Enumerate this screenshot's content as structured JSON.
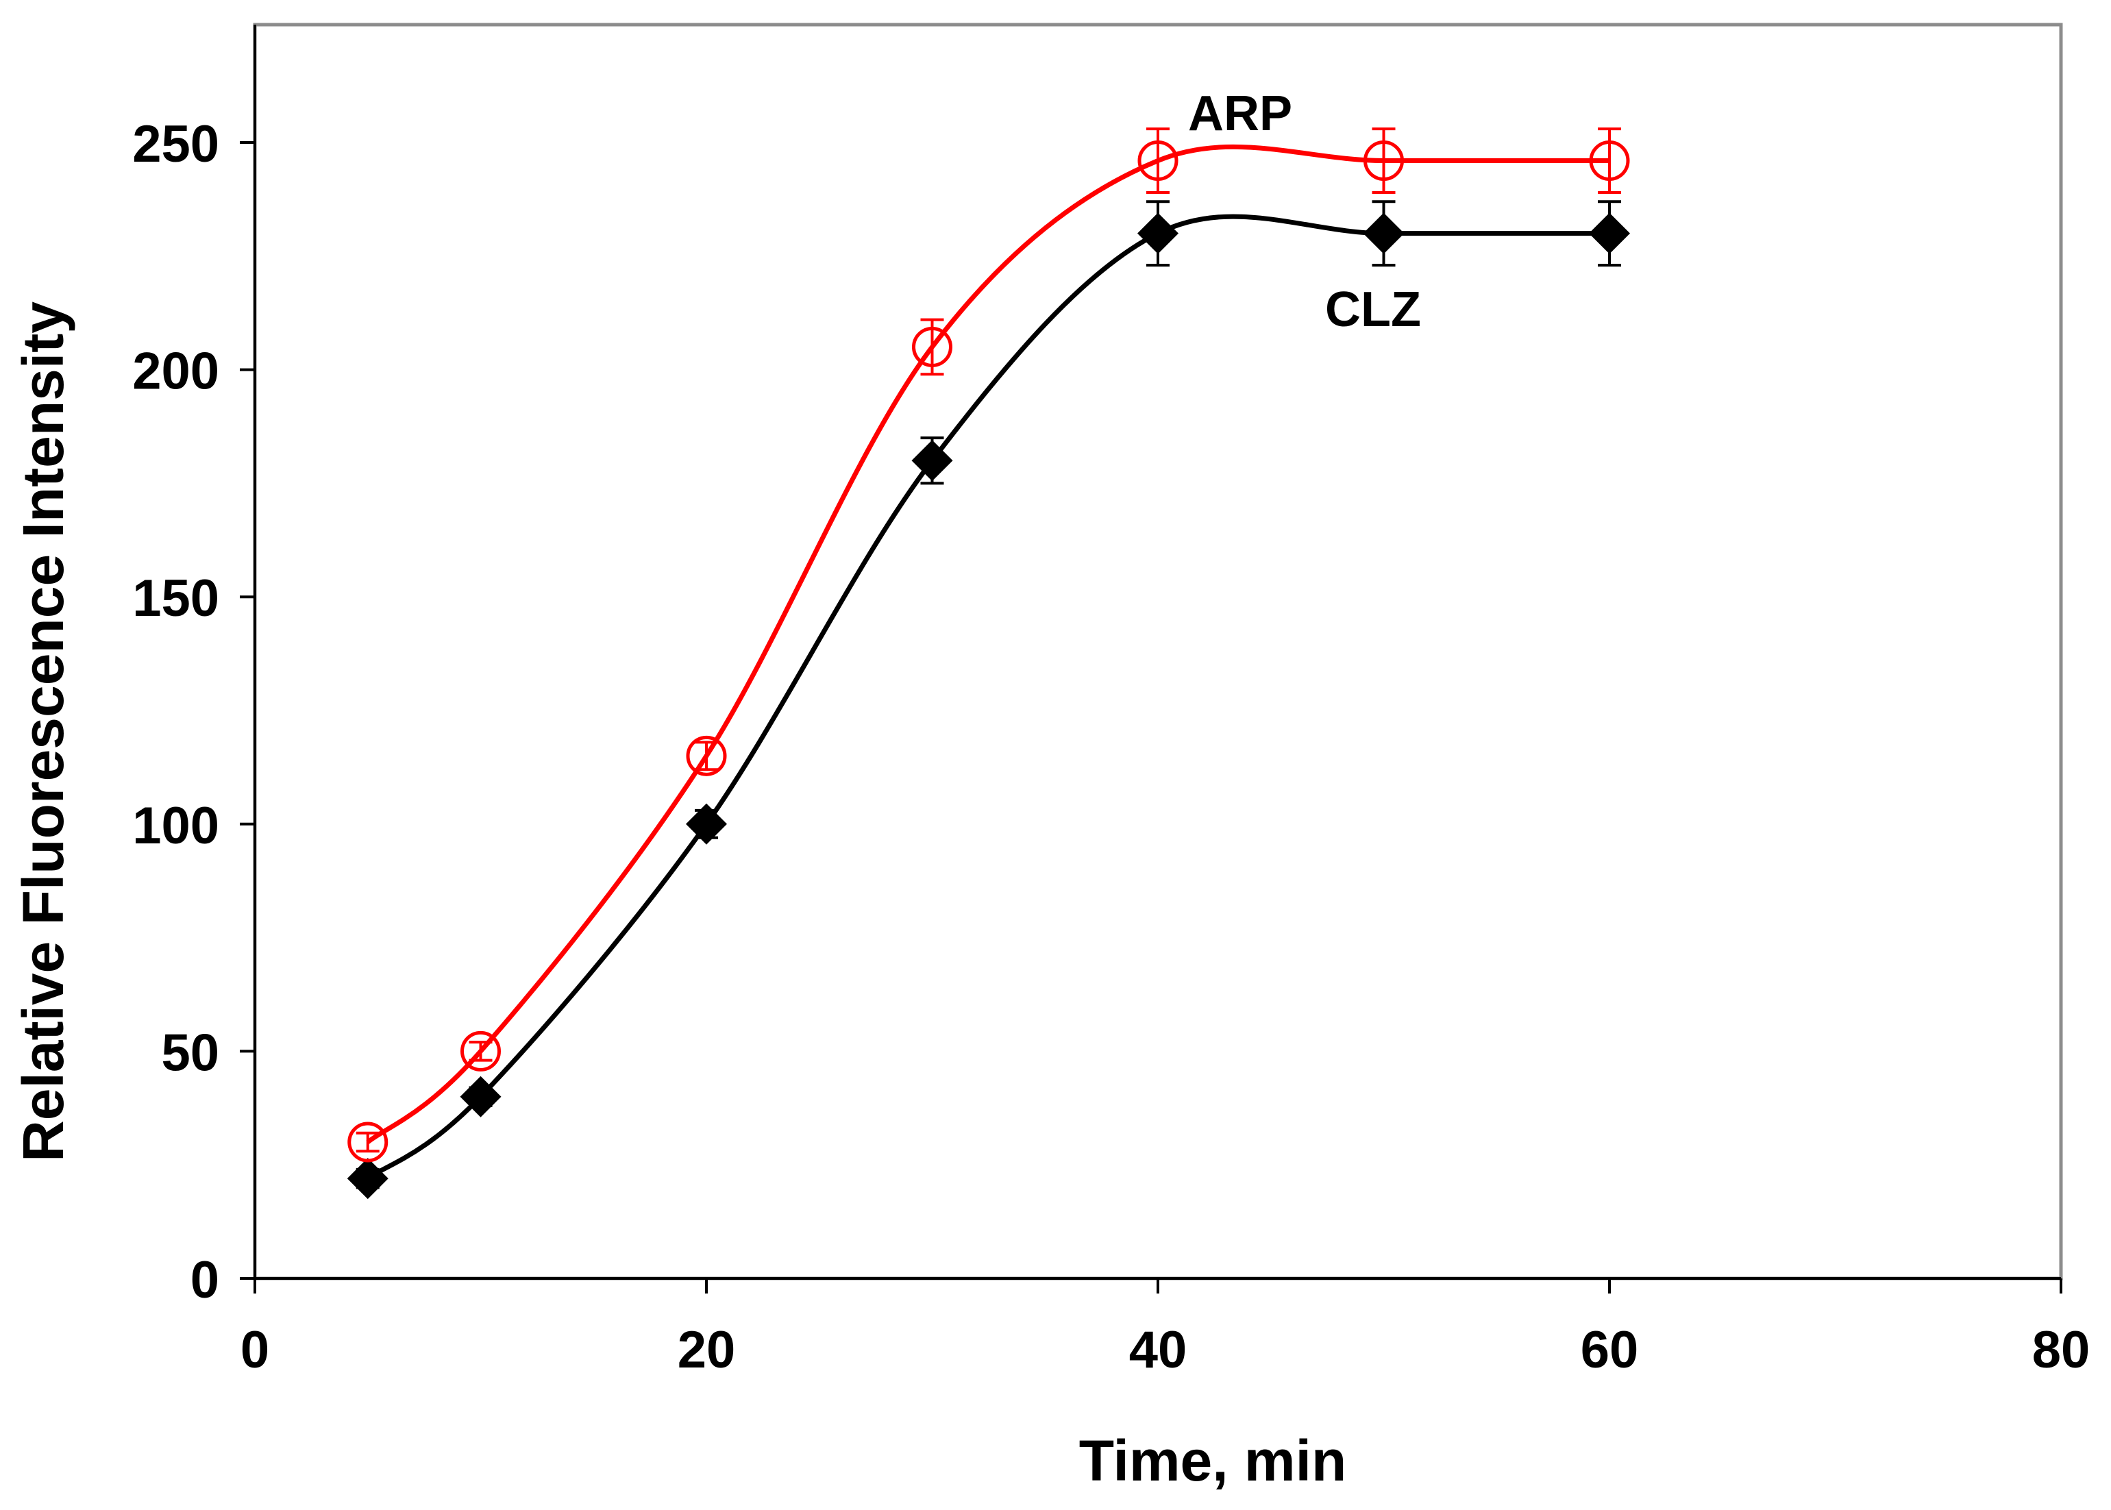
{
  "chart_data": {
    "type": "line",
    "title": "",
    "xlabel": "Time, min",
    "ylabel": "Relative Fluorescence Intensity",
    "xlim": [
      0,
      80
    ],
    "ylim": [
      0,
      275
    ],
    "xticks": [
      0,
      20,
      40,
      60,
      80
    ],
    "yticks": [
      0,
      50,
      100,
      150,
      200,
      250
    ],
    "grid": false,
    "legend": "none",
    "series": [
      {
        "name": "ARP",
        "color": "#ff0000",
        "marker": "open-circle",
        "x": [
          5,
          10,
          20,
          30,
          40,
          50,
          60
        ],
        "y": [
          30,
          50,
          115,
          205,
          246,
          246,
          246
        ],
        "error": [
          2,
          2,
          3,
          6,
          7,
          7,
          7
        ]
      },
      {
        "name": "CLZ",
        "color": "#000000",
        "marker": "filled-diamond",
        "x": [
          5,
          10,
          20,
          30,
          40,
          50,
          60
        ],
        "y": [
          22,
          40,
          100,
          180,
          230,
          230,
          230
        ],
        "error": [
          2,
          2,
          3,
          5,
          7,
          7,
          7
        ]
      }
    ],
    "annotations": [
      {
        "text": "ARP",
        "series": "ARP",
        "near_x": 42,
        "near_y": 258
      },
      {
        "text": "CLZ",
        "series": "CLZ",
        "near_x": 49,
        "near_y": 213
      }
    ]
  }
}
